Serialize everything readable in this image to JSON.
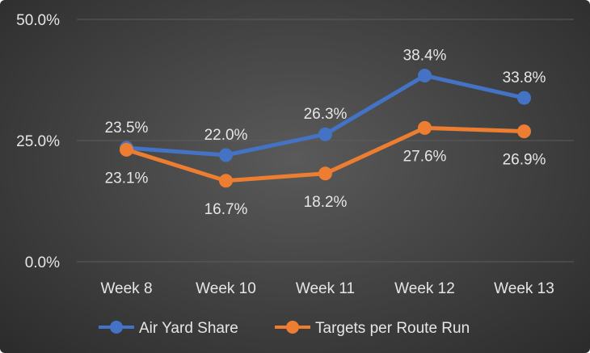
{
  "chart_data": {
    "type": "line",
    "categories": [
      "Week 8",
      "Week 10",
      "Week 11",
      "Week 12",
      "Week 13"
    ],
    "series": [
      {
        "name": "Air Yard Share",
        "values": [
          23.5,
          22.0,
          26.3,
          38.4,
          33.8
        ],
        "labels": [
          "23.5%",
          "22.0%",
          "26.3%",
          "38.4%",
          "33.8%"
        ],
        "color": "#4472C4",
        "label_position": "above"
      },
      {
        "name": "Targets per Route Run",
        "values": [
          23.1,
          16.7,
          18.2,
          27.6,
          26.9
        ],
        "labels": [
          "23.1%",
          "16.7%",
          "18.2%",
          "27.6%",
          "26.9%"
        ],
        "color": "#ED7D31",
        "label_position": "below"
      }
    ],
    "y_ticks": [
      {
        "value": 0,
        "label": "0.0%"
      },
      {
        "value": 25,
        "label": "25.0%"
      },
      {
        "value": 50,
        "label": "50.0%"
      }
    ],
    "ylim": [
      0,
      50
    ],
    "grid": true,
    "legend": "bottom",
    "title": "",
    "xlabel": "",
    "ylabel": "",
    "background": "#404040",
    "grid_color": "#5c5c5c",
    "text_color": "#e6e6e6"
  }
}
